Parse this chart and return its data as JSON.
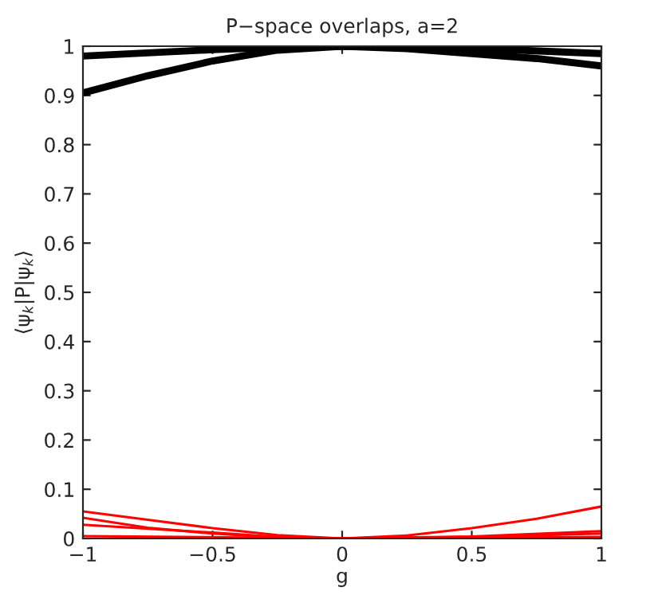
{
  "chart_data": {
    "type": "line",
    "title": "P−space overlaps, a=2",
    "xlabel": "g",
    "ylabel": "⟨ψ$_{k}$|P|ψ$_{k}$⟩",
    "xlim": [
      -1,
      1
    ],
    "ylim": [
      0,
      1
    ],
    "xticks": [
      {
        "value": -1,
        "label": "−1"
      },
      {
        "value": -0.5,
        "label": "−0.5"
      },
      0,
      0.5,
      1
    ],
    "yticks": [
      0,
      0.1,
      0.2,
      0.3,
      0.4,
      0.5,
      0.6,
      0.7,
      0.8,
      0.9,
      1
    ],
    "grid": false,
    "marker": "none",
    "line_style": "solid",
    "series": [
      {
        "color": "#000000",
        "x": [
          -1,
          -0.75,
          -0.5,
          -0.25,
          0,
          0.25,
          0.5,
          0.75,
          1
        ],
        "values": [
          0.905,
          0.94,
          0.97,
          0.992,
          1.0,
          0.995,
          0.985,
          0.975,
          0.96
        ]
      },
      {
        "color": "#000000",
        "x": [
          -1,
          -0.5,
          -0.25,
          0,
          0.5,
          1
        ],
        "values": [
          0.98,
          0.993,
          0.998,
          1.0,
          0.996,
          0.985
        ]
      },
      {
        "color": "#ff0000",
        "x": [
          -1,
          -0.75,
          -0.5,
          -0.25,
          0,
          0.25,
          0.5,
          0.75,
          1
        ],
        "values": [
          0.055,
          0.038,
          0.021,
          0.007,
          0,
          0.006,
          0.021,
          0.04,
          0.065
        ]
      },
      {
        "color": "#ff0000",
        "x": [
          -1,
          -0.75,
          -0.5,
          -0.25,
          0,
          0.5,
          1
        ],
        "values": [
          0.042,
          0.022,
          0.01,
          0.002,
          0,
          0.004,
          0.015
        ]
      },
      {
        "color": "#ff0000",
        "x": [
          -1,
          -0.5,
          -0.25,
          0,
          0.5,
          1
        ],
        "values": [
          0.028,
          0.012,
          0.003,
          0,
          0.003,
          0.01
        ]
      },
      {
        "color": "#ff0000",
        "x": [
          -1,
          0,
          1
        ],
        "values": [
          0.005,
          0,
          0.003
        ]
      }
    ]
  }
}
